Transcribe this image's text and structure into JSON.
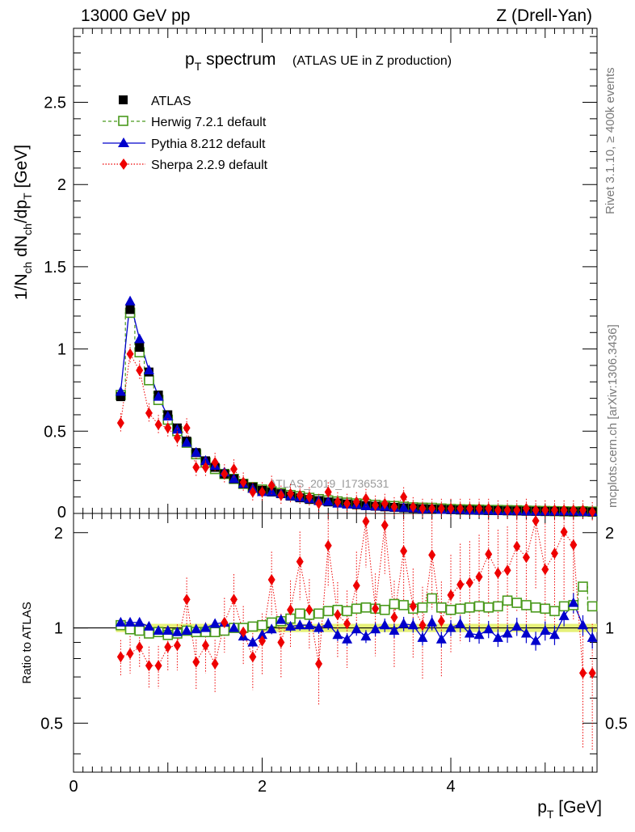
{
  "header": {
    "left_label": "13000 GeV pp",
    "right_label": "Z (Drell-Yan)"
  },
  "plot": {
    "title_main": "p",
    "title_sub": "T",
    "title_rest": " spectrum",
    "title_note": "(ATLAS UE in Z production)",
    "watermark": "ATLAS_2019_I1736531"
  },
  "side_labels": {
    "rivet": "Rivet 3.1.10, ≥ 400k events",
    "mcplots": "mcplots.cern.ch [arXiv:1306.3436]"
  },
  "legend": [
    {
      "label": "ATLAS",
      "marker": "filled-square",
      "color": "#000000"
    },
    {
      "label": "Herwig 7.2.1 default",
      "marker": "open-square",
      "color": "#4a9a1d"
    },
    {
      "label": "Pythia 8.212 default",
      "marker": "filled-triangle",
      "color": "#0000cc"
    },
    {
      "label": "Sherpa 2.2.9 default",
      "marker": "filled-diamond",
      "color": "#ee0000"
    }
  ],
  "colors": {
    "atlas": "#000000",
    "herwig": "#4a9a1d",
    "pythia": "#0000cc",
    "sherpa": "#ee0000",
    "band": "#e3f06a"
  },
  "chart_data": [
    {
      "type": "scatter",
      "panel": "main",
      "title": "pT spectrum (ATLAS UE in Z production)",
      "xlabel": "p_T [GeV]",
      "ylabel": "1/N_ch dN_ch/dp_T [GeV]",
      "xlim": [
        0,
        5.55
      ],
      "ylim": [
        0,
        2.95
      ],
      "x_ticks": [
        0,
        2,
        4
      ],
      "y_ticks": [
        0.5,
        1,
        1.5,
        2,
        2.5
      ],
      "x_tick_labels": [
        "0",
        "2",
        "4"
      ],
      "y_tick_labels": [
        "0.5",
        "1",
        "1.5",
        "2",
        "2.5"
      ],
      "x": [
        0.5,
        0.6,
        0.7,
        0.8,
        0.9,
        1.0,
        1.1,
        1.2,
        1.3,
        1.4,
        1.5,
        1.6,
        1.7,
        1.8,
        1.9,
        2.0,
        2.1,
        2.2,
        2.3,
        2.4,
        2.5,
        2.6,
        2.7,
        2.8,
        2.9,
        3.0,
        3.1,
        3.2,
        3.3,
        3.4,
        3.5,
        3.6,
        3.7,
        3.8,
        3.9,
        4.0,
        4.1,
        4.2,
        4.3,
        4.4,
        4.5,
        4.6,
        4.7,
        4.8,
        4.9,
        5.0,
        5.1,
        5.2,
        5.3,
        5.4,
        5.5
      ],
      "series": [
        {
          "name": "ATLAS",
          "values": [
            0.71,
            1.24,
            1.01,
            0.86,
            0.72,
            0.6,
            0.52,
            0.44,
            0.37,
            0.32,
            0.28,
            0.24,
            0.21,
            0.18,
            0.16,
            0.14,
            0.13,
            0.12,
            0.105,
            0.095,
            0.085,
            0.078,
            0.07,
            0.064,
            0.058,
            0.053,
            0.048,
            0.044,
            0.04,
            0.037,
            0.034,
            0.031,
            0.029,
            0.027,
            0.025,
            0.023,
            0.021,
            0.02,
            0.019,
            0.018,
            0.017,
            0.016,
            0.015,
            0.014,
            0.013,
            0.012,
            0.012,
            0.011,
            0.01,
            0.01,
            0.009
          ]
        },
        {
          "name": "Herwig 7.2.1 default",
          "values": [
            0.72,
            1.22,
            0.98,
            0.81,
            0.69,
            0.57,
            0.5,
            0.43,
            0.36,
            0.31,
            0.27,
            0.24,
            0.21,
            0.18,
            0.16,
            0.145,
            0.135,
            0.125,
            0.112,
            0.105,
            0.095,
            0.087,
            0.079,
            0.073,
            0.066,
            0.061,
            0.057,
            0.052,
            0.047,
            0.045,
            0.041,
            0.037,
            0.035,
            0.034,
            0.03,
            0.027,
            0.025,
            0.024,
            0.023,
            0.021,
            0.021,
            0.02,
            0.019,
            0.017,
            0.016,
            0.015,
            0.014,
            0.013,
            0.012,
            0.013,
            0.011
          ]
        },
        {
          "name": "Pythia 8.212 default",
          "values": [
            0.74,
            1.29,
            1.06,
            0.87,
            0.71,
            0.59,
            0.51,
            0.43,
            0.37,
            0.32,
            0.29,
            0.25,
            0.21,
            0.18,
            0.15,
            0.13,
            0.13,
            0.12,
            0.105,
            0.097,
            0.088,
            0.076,
            0.072,
            0.06,
            0.055,
            0.054,
            0.045,
            0.043,
            0.041,
            0.036,
            0.035,
            0.032,
            0.026,
            0.028,
            0.023,
            0.023,
            0.022,
            0.019,
            0.018,
            0.018,
            0.016,
            0.016,
            0.016,
            0.013,
            0.012,
            0.012,
            0.012,
            0.013,
            0.012,
            0.01,
            0.009
          ]
        },
        {
          "name": "Sherpa 2.2.9 default",
          "values": [
            0.55,
            0.97,
            0.87,
            0.61,
            0.54,
            0.52,
            0.46,
            0.52,
            0.28,
            0.28,
            0.31,
            0.24,
            0.27,
            0.19,
            0.13,
            0.13,
            0.17,
            0.11,
            0.12,
            0.11,
            0.1,
            0.06,
            0.13,
            0.07,
            0.06,
            0.07,
            0.09,
            0.05,
            0.06,
            0.04,
            0.1,
            0.04,
            0.03,
            0.03,
            0.03,
            0.03,
            0.03,
            0.03,
            0.03,
            0.03,
            0.02,
            0.02,
            0.02,
            0.03,
            0.02,
            0.02,
            0.02,
            0.02,
            0.02,
            0.02,
            0.01
          ]
        }
      ]
    },
    {
      "type": "scatter",
      "panel": "ratio",
      "xlabel": "p_T [GeV]",
      "ylabel": "Ratio to ATLAS",
      "xlim": [
        0,
        5.55
      ],
      "ylim": [
        0.35,
        2.3
      ],
      "y_ticks": [
        0.5,
        1,
        2
      ],
      "y_tick_labels": [
        "0.5",
        "1",
        "2"
      ],
      "x_ticks": [
        0,
        2,
        4
      ],
      "x_tick_labels": [
        "0",
        "2",
        "4"
      ],
      "x": [
        0.5,
        0.6,
        0.7,
        0.8,
        0.9,
        1.0,
        1.1,
        1.2,
        1.3,
        1.4,
        1.5,
        1.6,
        1.7,
        1.8,
        1.9,
        2.0,
        2.1,
        2.2,
        2.3,
        2.4,
        2.5,
        2.6,
        2.7,
        2.8,
        2.9,
        3.0,
        3.1,
        3.2,
        3.3,
        3.4,
        3.5,
        3.6,
        3.7,
        3.8,
        3.9,
        4.0,
        4.1,
        4.2,
        4.3,
        4.4,
        4.5,
        4.6,
        4.7,
        4.8,
        4.9,
        5.0,
        5.1,
        5.2,
        5.3,
        5.4,
        5.5
      ],
      "atlas_band": 0.03,
      "series": [
        {
          "name": "Herwig 7.2.1 default",
          "values": [
            1.02,
            0.99,
            0.98,
            0.96,
            0.97,
            0.95,
            0.96,
            0.98,
            0.97,
            0.97,
            0.97,
            0.98,
            1.0,
            1.0,
            1.01,
            1.02,
            1.04,
            1.05,
            1.07,
            1.11,
            1.1,
            1.11,
            1.13,
            1.14,
            1.13,
            1.15,
            1.16,
            1.15,
            1.14,
            1.19,
            1.18,
            1.15,
            1.16,
            1.24,
            1.16,
            1.14,
            1.15,
            1.16,
            1.17,
            1.16,
            1.17,
            1.22,
            1.2,
            1.18,
            1.16,
            1.15,
            1.13,
            1.17,
            1.18,
            1.35,
            1.17
          ]
        },
        {
          "name": "Pythia 8.212 default",
          "values": [
            1.04,
            1.04,
            1.04,
            1.01,
            0.98,
            0.98,
            0.97,
            0.98,
            0.99,
            1.0,
            1.03,
            1.04,
            1.0,
            0.94,
            0.9,
            0.95,
            0.99,
            1.06,
            1.01,
            1.02,
            1.02,
            1.0,
            1.03,
            0.95,
            0.92,
            0.99,
            0.94,
            0.99,
            1.02,
            0.98,
            1.03,
            1.02,
            0.93,
            1.04,
            0.92,
            1.0,
            1.03,
            0.96,
            0.95,
            0.99,
            0.93,
            0.96,
            1.01,
            0.96,
            0.91,
            0.98,
            0.95,
            1.09,
            1.2,
            1.02,
            0.93
          ]
        },
        {
          "name": "Sherpa 2.2.9 default",
          "values": [
            0.81,
            0.83,
            0.87,
            0.76,
            0.76,
            0.87,
            0.88,
            1.23,
            0.78,
            0.88,
            0.77,
            1.04,
            1.23,
            0.97,
            0.81,
            0.91,
            1.42,
            0.9,
            1.14,
            1.62,
            1.14,
            0.77,
            1.82,
            1.1,
            1.03,
            1.36,
            2.17,
            1.15,
            2.11,
            1.08,
            1.75,
            1.17,
            1.02,
            1.7,
            1.05,
            1.27,
            1.37,
            1.39,
            1.45,
            1.71,
            1.49,
            1.52,
            1.81,
            1.67,
            2.18,
            1.53,
            1.72,
            2.01,
            1.83,
            0.72,
            0.72
          ]
        }
      ]
    }
  ]
}
